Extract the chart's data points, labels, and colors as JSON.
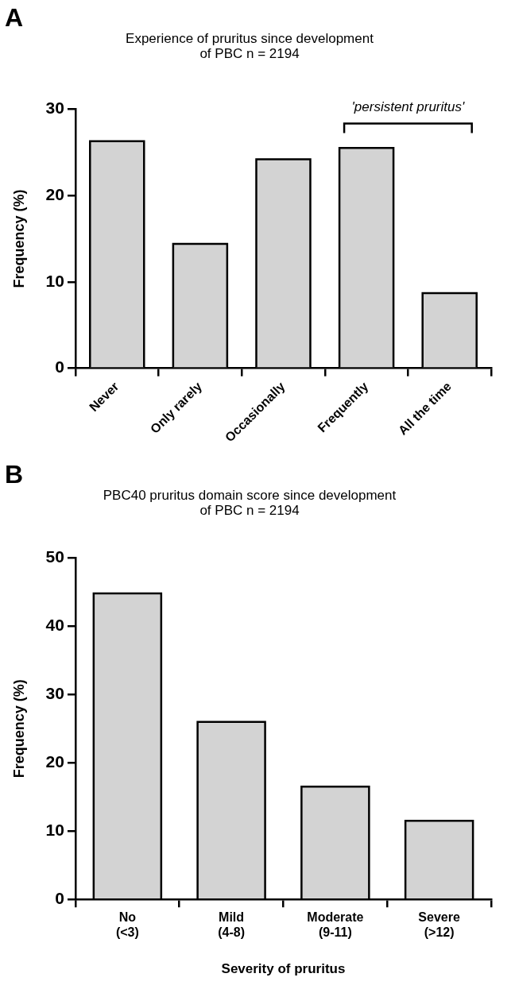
{
  "chart_data": [
    {
      "type": "bar",
      "title": "Experience of pruritus since development\nof PBC n = 2194",
      "ylabel": "Frequency (%)",
      "categories": [
        "Never",
        "Only rarely",
        "Occasionally",
        "Frequently",
        "All the time"
      ],
      "values": [
        26.3,
        14.4,
        24.2,
        25.5,
        8.7
      ],
      "color": "#d3d3d3",
      "ylim": [
        0,
        30
      ],
      "yticks": [
        0,
        10,
        20,
        30
      ],
      "grid": false,
      "legend": false,
      "annotations": [
        "A",
        "'persistent pruritus'"
      ]
    },
    {
      "type": "bar",
      "title": "PBC40 pruritus domain score since development\nof PBC n = 2194",
      "xlabel": "Severity of pruritus",
      "ylabel": "Frequency (%)",
      "categories": [
        "No\n(<3)",
        "Mild\n(4-8)",
        "Moderate\n(9-11)",
        "Severe\n(>12)"
      ],
      "values": [
        44.8,
        26.0,
        16.5,
        11.5
      ],
      "color": "#d3d3d3",
      "ylim": [
        0,
        50
      ],
      "yticks": [
        0,
        10,
        20,
        30,
        40,
        50
      ],
      "grid": false,
      "legend": false,
      "annotations": [
        "B"
      ]
    }
  ]
}
